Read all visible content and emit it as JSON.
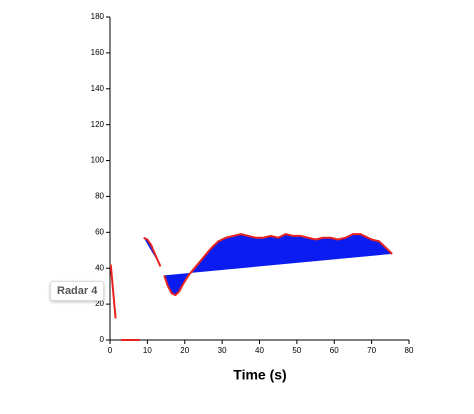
{
  "chart_data": {
    "type": "area",
    "xlabel": "Time (s)",
    "xlim": [
      0,
      80
    ],
    "xticks": [
      0,
      10,
      20,
      30,
      40,
      50,
      60,
      70,
      80
    ],
    "ylim": [
      0,
      180
    ],
    "yticks": [
      0,
      20,
      40,
      60,
      80,
      100,
      120,
      140,
      160,
      180
    ],
    "series": [
      {
        "name": "Radar 4",
        "color": "#e8231f",
        "fill": "#0a1cf0",
        "x": [
          0.2,
          1.5,
          null,
          3,
          8,
          null,
          9,
          10,
          11,
          12,
          13.5,
          null,
          14.5,
          15.5,
          16.5,
          17.5,
          18.5,
          19.5,
          21,
          23,
          25,
          27,
          29,
          31,
          33,
          35,
          37,
          39,
          41,
          43,
          45,
          47,
          49,
          51,
          53,
          55,
          57,
          59,
          61,
          63,
          65,
          67,
          68,
          70,
          72,
          74,
          75.5
        ],
        "values": [
          42,
          12,
          null,
          0,
          0,
          null,
          57,
          56,
          53,
          48,
          41,
          null,
          36,
          30,
          26,
          25,
          27,
          31,
          36,
          41,
          46,
          51,
          55,
          57,
          58,
          59,
          58,
          57,
          57,
          58,
          57,
          59,
          58,
          58,
          57,
          56,
          57,
          57,
          56,
          57,
          59,
          59,
          58,
          56,
          55,
          51,
          48
        ]
      }
    ]
  }
}
